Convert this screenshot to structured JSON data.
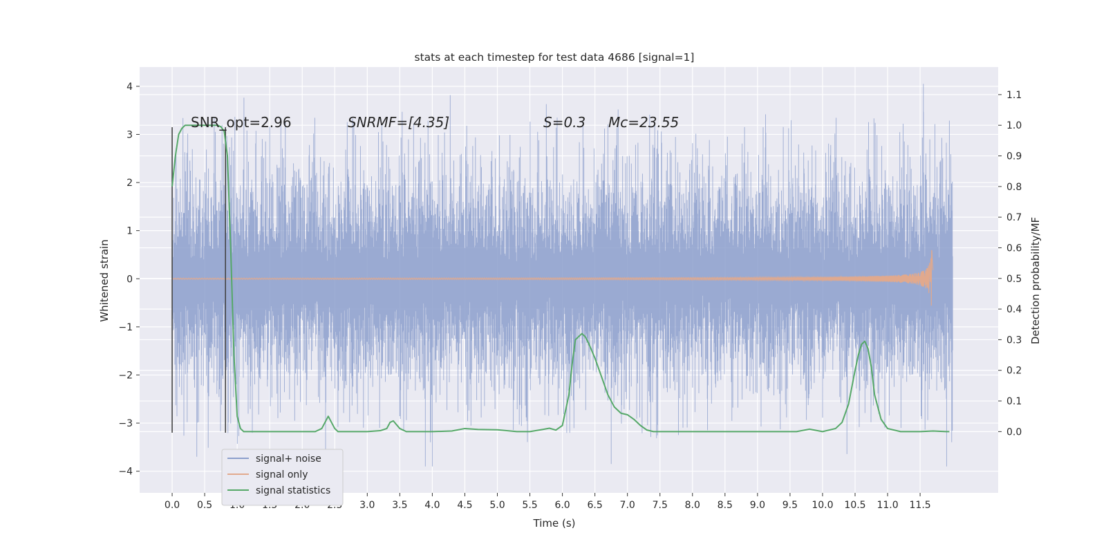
{
  "chart_data": {
    "type": "line",
    "title": "stats at each timestep for test data 4686 [signal=1]",
    "xlabel": "Time (s)",
    "ylabel": "Whitened strain",
    "y2label": "Detection probability/MF",
    "xlim": [
      -0.5,
      12.7
    ],
    "ylim": [
      -4.45,
      4.4
    ],
    "y2lim": [
      -0.2,
      1.19
    ],
    "x_ticks": [
      "0.0",
      "0.5",
      "1.0",
      "1.5",
      "2.0",
      "2.5",
      "3.0",
      "3.5",
      "4.0",
      "4.5",
      "5.0",
      "5.5",
      "6.0",
      "6.5",
      "7.0",
      "7.5",
      "8.0",
      "8.5",
      "9.0",
      "9.5",
      "10.0",
      "10.5",
      "11.0",
      "11.5"
    ],
    "y_ticks": [
      "−4",
      "−3",
      "−2",
      "−1",
      "0",
      "1",
      "2",
      "3",
      "4"
    ],
    "y2_ticks": [
      "0.0",
      "0.1",
      "0.2",
      "0.3",
      "0.4",
      "0.5",
      "0.6",
      "0.7",
      "0.8",
      "0.9",
      "1.0",
      "1.1"
    ],
    "grid": true,
    "legend_position": "lower-left",
    "annotations": {
      "snr_opt": "SNR_opt=2.96",
      "snr_mf": "SNRMF=[4.35]",
      "s": "S=0.3",
      "mc": "Mc=23.55"
    },
    "colors": {
      "background": "#eaeaf2",
      "grid": "#ffffff",
      "noise": "#8c9fcc",
      "signal": "#e1a98d",
      "stats": "#55a868",
      "marker": "#444444"
    },
    "series": [
      {
        "name": "signal+ noise",
        "axis": "left",
        "style": "dense-noise",
        "t_range": [
          0.0,
          12.0
        ],
        "typical_amplitude": 1.25,
        "max_value": 4.05,
        "min_value": -3.9
      },
      {
        "name": "signal only",
        "axis": "left",
        "style": "chirp",
        "t_range": [
          0.0,
          11.7
        ],
        "merger_time": 11.68,
        "peak_amplitude": 0.6
      },
      {
        "name": "signal statistics",
        "axis": "right",
        "x": [
          0.0,
          0.05,
          0.1,
          0.15,
          0.2,
          0.25,
          0.3,
          0.4,
          0.5,
          0.6,
          0.7,
          0.75,
          0.8,
          0.85,
          0.9,
          0.95,
          1.0,
          1.05,
          1.1,
          1.2,
          1.5,
          2.0,
          2.2,
          2.3,
          2.35,
          2.4,
          2.45,
          2.5,
          2.55,
          2.6,
          2.7,
          3.0,
          3.2,
          3.3,
          3.35,
          3.4,
          3.5,
          3.6,
          3.7,
          4.0,
          4.3,
          4.5,
          4.7,
          5.0,
          5.3,
          5.5,
          5.7,
          5.8,
          5.9,
          6.0,
          6.1,
          6.15,
          6.2,
          6.3,
          6.35,
          6.4,
          6.5,
          6.6,
          6.7,
          6.8,
          6.9,
          7.0,
          7.1,
          7.2,
          7.3,
          7.4,
          7.6,
          8.0,
          9.0,
          9.6,
          9.8,
          9.9,
          10.0,
          10.2,
          10.3,
          10.4,
          10.5,
          10.55,
          10.6,
          10.65,
          10.7,
          10.75,
          10.8,
          10.9,
          11.0,
          11.2,
          11.5,
          11.7,
          11.9,
          11.95
        ],
        "values": [
          0.8,
          0.9,
          0.97,
          0.99,
          1.0,
          1.0,
          1.0,
          1.0,
          1.0,
          1.0,
          1.0,
          0.995,
          0.98,
          0.9,
          0.6,
          0.25,
          0.05,
          0.01,
          0.0,
          0.0,
          0.0,
          0.0,
          0.0,
          0.01,
          0.03,
          0.05,
          0.03,
          0.01,
          0.0,
          0.0,
          0.0,
          0.0,
          0.003,
          0.01,
          0.03,
          0.035,
          0.01,
          0.0,
          0.0,
          0.0,
          0.002,
          0.01,
          0.007,
          0.006,
          0.0,
          0.0,
          0.007,
          0.011,
          0.005,
          0.02,
          0.12,
          0.22,
          0.3,
          0.32,
          0.31,
          0.29,
          0.24,
          0.18,
          0.12,
          0.08,
          0.06,
          0.055,
          0.04,
          0.02,
          0.005,
          0.0,
          0.0,
          0.0,
          0.0,
          0.0,
          0.008,
          0.004,
          0.0,
          0.01,
          0.03,
          0.09,
          0.2,
          0.25,
          0.285,
          0.295,
          0.27,
          0.21,
          0.12,
          0.04,
          0.01,
          0.0,
          0.0,
          0.002,
          0.0,
          0.0
        ]
      }
    ],
    "vertical_markers": [
      {
        "x": 0.0,
        "y_from": -3.2,
        "y_to": 3.15
      },
      {
        "x": 0.82,
        "y_from": -3.2,
        "y_to": 3.15
      }
    ]
  }
}
